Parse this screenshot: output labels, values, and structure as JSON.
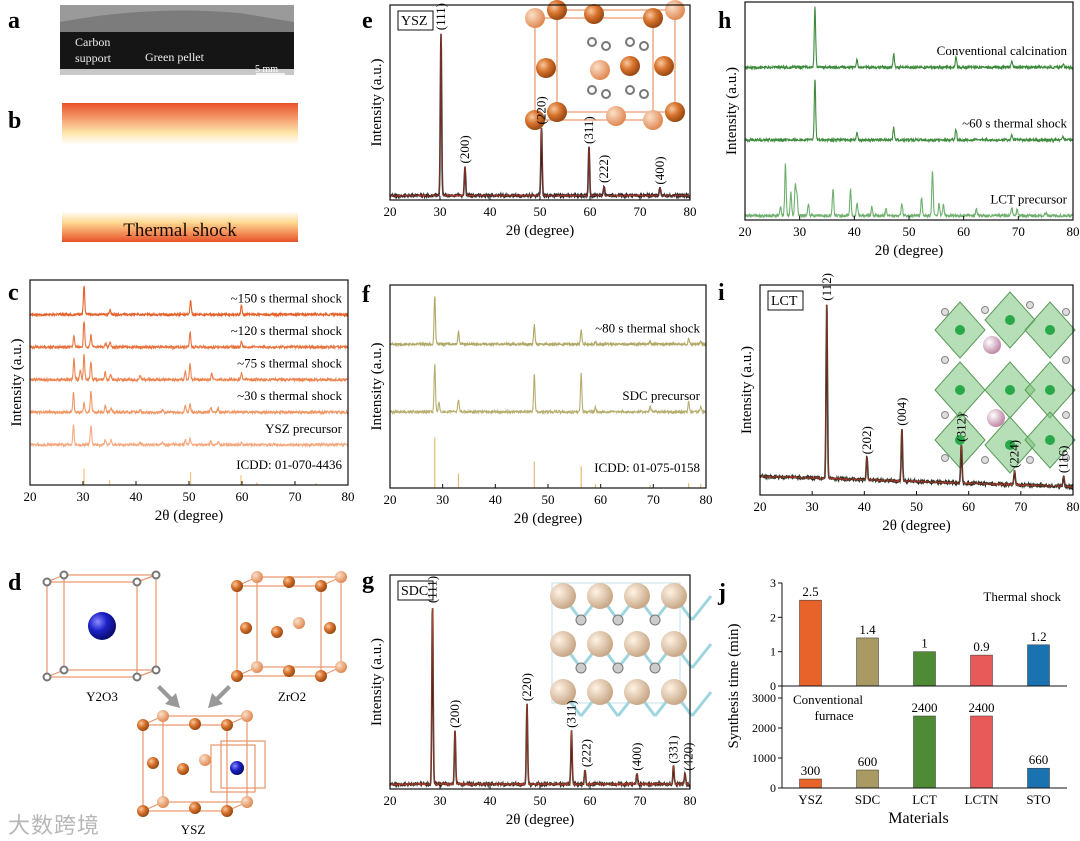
{
  "panel_labels": [
    "a",
    "b",
    "c",
    "d",
    "e",
    "f",
    "g",
    "h",
    "i",
    "j"
  ],
  "panel_a": {
    "left_label_1": "Carbon",
    "left_label_2": "support",
    "center_label": "Green pellet",
    "scale_bar": "5 mm"
  },
  "panel_b": {
    "caption": "Thermal shock"
  },
  "panel_d": {
    "left": "Y2O3",
    "right": "ZrO2",
    "product": "YSZ"
  },
  "watermark": "大数跨境",
  "chart_data": [
    {
      "id": "c",
      "type": "line",
      "xlabel": "2θ (degree)",
      "ylabel": "Intensity (a.u.)",
      "xlim": [
        20,
        80
      ],
      "ylim": [
        0,
        6.3
      ],
      "xticks": [
        20,
        30,
        40,
        50,
        60,
        70,
        80
      ],
      "tag": "",
      "series": [
        {
          "name": "~150 s thermal shock",
          "offset": 5.2,
          "color": "#e4612a",
          "peaks": [
            [
              30.2,
              0.9
            ],
            [
              35.1,
              0.15
            ],
            [
              50.3,
              0.45
            ],
            [
              59.9,
              0.28
            ]
          ]
        },
        {
          "name": "~120 s thermal shock",
          "offset": 4.2,
          "color": "#e8723e",
          "peaks": [
            [
              28.3,
              0.35
            ],
            [
              30.2,
              0.8
            ],
            [
              31.5,
              0.35
            ],
            [
              34.3,
              0.12
            ],
            [
              35.1,
              0.15
            ],
            [
              50.2,
              0.45
            ],
            [
              59.9,
              0.2
            ]
          ]
        },
        {
          "name": "~75 s thermal shock",
          "offset": 3.2,
          "color": "#ec8450",
          "peaks": [
            [
              28.3,
              0.65
            ],
            [
              29.5,
              0.3
            ],
            [
              30.2,
              0.75
            ],
            [
              31.5,
              0.55
            ],
            [
              34.2,
              0.25
            ],
            [
              35.2,
              0.2
            ],
            [
              40.8,
              0.1
            ],
            [
              49.3,
              0.25
            ],
            [
              50.2,
              0.5
            ],
            [
              54.3,
              0.2
            ],
            [
              59.9,
              0.2
            ]
          ]
        },
        {
          "name": "~30 s thermal shock",
          "offset": 2.2,
          "color": "#f09766",
          "peaks": [
            [
              28.2,
              0.6
            ],
            [
              30.2,
              0.3
            ],
            [
              31.5,
              0.65
            ],
            [
              34.2,
              0.2
            ],
            [
              35.3,
              0.15
            ],
            [
              40.8,
              0.1
            ],
            [
              45,
              0.08
            ],
            [
              49.3,
              0.2
            ],
            [
              50.2,
              0.25
            ],
            [
              54.1,
              0.15
            ],
            [
              55.5,
              0.12
            ]
          ]
        },
        {
          "name": "YSZ precursor",
          "offset": 1.2,
          "color": "#f4a980",
          "peaks": [
            [
              28.2,
              0.6
            ],
            [
              31.5,
              0.6
            ],
            [
              34.2,
              0.15
            ],
            [
              35.3,
              0.15
            ],
            [
              40.8,
              0.08
            ],
            [
              45,
              0.08
            ],
            [
              49.3,
              0.15
            ],
            [
              50.2,
              0.18
            ],
            [
              54.1,
              0.12
            ],
            [
              55.5,
              0.12
            ],
            [
              59.9,
              0.08
            ]
          ]
        },
        {
          "name": "ICDD: 01-070-4436",
          "offset": 0,
          "color": "#f5c27a",
          "sticks": true,
          "peaks": [
            [
              30.2,
              0.5
            ],
            [
              35.0,
              0.15
            ],
            [
              50.3,
              0.4
            ],
            [
              59.8,
              0.3
            ],
            [
              62.8,
              0.08
            ],
            [
              74,
              0.06
            ]
          ]
        }
      ]
    },
    {
      "id": "e",
      "type": "line",
      "xlabel": "2θ (degree)",
      "ylabel": "Intensity (a.u.)",
      "xlim": [
        20,
        80
      ],
      "ylim": [
        0,
        1.2
      ],
      "xticks": [
        20,
        30,
        40,
        50,
        60,
        70,
        80
      ],
      "tag": "YSZ",
      "series": [
        {
          "name": "YSZ",
          "offset": 0.02,
          "color": "#222",
          "peaks": [
            [
              30.2,
              1.0
            ],
            [
              35.0,
              0.18
            ],
            [
              50.3,
              0.42
            ],
            [
              59.8,
              0.3
            ],
            [
              62.8,
              0.06
            ],
            [
              74.0,
              0.05
            ]
          ]
        }
      ],
      "peak_labels": [
        {
          "text": "(111)",
          "x": 30.2
        },
        {
          "text": "(200)",
          "x": 35.0
        },
        {
          "text": "(220)",
          "x": 50.3
        },
        {
          "text": "(311)",
          "x": 59.8
        },
        {
          "text": "(222)",
          "x": 62.8
        },
        {
          "text": "(400)",
          "x": 74.0
        }
      ]
    },
    {
      "id": "f",
      "type": "line",
      "xlabel": "2θ (degree)",
      "ylabel": "Intensity (a.u.)",
      "xlim": [
        20,
        80
      ],
      "ylim": [
        0,
        4.2
      ],
      "xticks": [
        20,
        30,
        40,
        50,
        60,
        70,
        80
      ],
      "tag": "",
      "series": [
        {
          "name": "~80 s thermal shock",
          "offset": 2.95,
          "color": "#b1a866",
          "peaks": [
            [
              28.5,
              1.0
            ],
            [
              33.0,
              0.25
            ],
            [
              47.4,
              0.4
            ],
            [
              56.3,
              0.3
            ],
            [
              59.0,
              0.05
            ],
            [
              69.4,
              0.05
            ],
            [
              76.7,
              0.1
            ],
            [
              79.0,
              0.06
            ]
          ]
        },
        {
          "name": "SDC precursor",
          "offset": 1.55,
          "color": "#b7ae70",
          "peaks": [
            [
              28.5,
              1.0
            ],
            [
              29.3,
              0.2
            ],
            [
              33.0,
              0.25
            ],
            [
              47.4,
              0.8
            ],
            [
              56.3,
              0.8
            ],
            [
              59.0,
              0.1
            ],
            [
              69.4,
              0.1
            ],
            [
              76.7,
              0.2
            ],
            [
              79.0,
              0.1
            ]
          ]
        },
        {
          "name": "ICDD: 01-075-0158",
          "offset": 0,
          "color": "#e0c070",
          "sticks": true,
          "peaks": [
            [
              28.5,
              1.05
            ],
            [
              33.0,
              0.3
            ],
            [
              47.4,
              0.55
            ],
            [
              56.3,
              0.45
            ],
            [
              59,
              0.08
            ],
            [
              69.4,
              0.06
            ],
            [
              76.7,
              0.1
            ],
            [
              79,
              0.08
            ]
          ]
        }
      ]
    },
    {
      "id": "g",
      "type": "line",
      "xlabel": "2θ (degree)",
      "ylabel": "Intensity (a.u.)",
      "xlim": [
        20,
        80
      ],
      "ylim": [
        0,
        1.2
      ],
      "xticks": [
        20,
        30,
        40,
        50,
        60,
        70,
        80
      ],
      "tag": "SDC",
      "series": [
        {
          "name": "SDC",
          "offset": 0.02,
          "color": "#3a2e22",
          "peaks": [
            [
              28.5,
              1.0
            ],
            [
              33.0,
              0.3
            ],
            [
              47.4,
              0.45
            ],
            [
              56.3,
              0.3
            ],
            [
              59.0,
              0.08
            ],
            [
              69.4,
              0.06
            ],
            [
              76.7,
              0.1
            ],
            [
              79.0,
              0.06
            ]
          ]
        }
      ],
      "peak_labels": [
        {
          "text": "(111)",
          "x": 28.5
        },
        {
          "text": "(200)",
          "x": 33.0
        },
        {
          "text": "(220)",
          "x": 47.4
        },
        {
          "text": "(311)",
          "x": 56.3
        },
        {
          "text": "(222)",
          "x": 59.0
        },
        {
          "text": "(400)",
          "x": 69.4
        },
        {
          "text": "(331)",
          "x": 76.7
        },
        {
          "text": "(420)",
          "x": 79.0
        }
      ]
    },
    {
      "id": "h",
      "type": "line",
      "xlabel": "2θ (degree)",
      "ylabel": "Intensity (a.u.)",
      "xlim": [
        20,
        80
      ],
      "ylim": [
        0,
        3.6
      ],
      "xticks": [
        20,
        30,
        40,
        50,
        60,
        70,
        80
      ],
      "tag": "",
      "series": [
        {
          "name": "Conventional calcination",
          "offset": 2.5,
          "color": "#3c8a3c",
          "peaks": [
            [
              32.8,
              1.0
            ],
            [
              40.5,
              0.12
            ],
            [
              47.2,
              0.22
            ],
            [
              58.6,
              0.18
            ],
            [
              68.8,
              0.1
            ],
            [
              78.2,
              0.05
            ]
          ]
        },
        {
          "name": "~60 s thermal shock",
          "offset": 1.3,
          "color": "#3f8c3f",
          "peaks": [
            [
              32.8,
              1.0
            ],
            [
              40.5,
              0.12
            ],
            [
              47.2,
              0.22
            ],
            [
              58.6,
              0.18
            ],
            [
              68.8,
              0.08
            ],
            [
              78.2,
              0.05
            ]
          ]
        },
        {
          "name": "LCT precursor",
          "offset": 0.05,
          "color": "#6fb06f",
          "peaks": [
            [
              26.5,
              0.15
            ],
            [
              27.4,
              0.85
            ],
            [
              28.4,
              0.4
            ],
            [
              29.2,
              0.5
            ],
            [
              29.5,
              0.35
            ],
            [
              31.6,
              0.2
            ],
            [
              36.1,
              0.45
            ],
            [
              39.3,
              0.45
            ],
            [
              40.5,
              0.2
            ],
            [
              43.2,
              0.15
            ],
            [
              45.8,
              0.12
            ],
            [
              48.7,
              0.2
            ],
            [
              52.3,
              0.3
            ],
            [
              54.3,
              0.75
            ],
            [
              55.5,
              0.2
            ],
            [
              56.3,
              0.2
            ],
            [
              62.3,
              0.12
            ],
            [
              68.8,
              0.15
            ],
            [
              69.8,
              0.1
            ],
            [
              75,
              0.06
            ]
          ]
        }
      ]
    },
    {
      "id": "i",
      "type": "line",
      "xlabel": "2θ (degree)",
      "ylabel": "Intensity (a.u.)",
      "xlim": [
        20,
        80
      ],
      "ylim": [
        0,
        1.2
      ],
      "xticks": [
        20,
        30,
        40,
        50,
        60,
        70,
        80
      ],
      "tag": "LCT",
      "sloped": true,
      "series": [
        {
          "name": "LCT",
          "offset": 0.04,
          "color": "#1f2b1f",
          "peaks": [
            [
              32.8,
              1.0
            ],
            [
              40.5,
              0.13
            ],
            [
              47.2,
              0.3
            ],
            [
              58.6,
              0.22
            ],
            [
              68.8,
              0.08
            ],
            [
              78.2,
              0.06
            ]
          ]
        }
      ],
      "peak_labels": [
        {
          "text": "(112)",
          "x": 32.8
        },
        {
          "text": "(202)",
          "x": 40.5
        },
        {
          "text": "(004)",
          "x": 47.2
        },
        {
          "text": "(312)",
          "x": 58.6
        },
        {
          "text": "(224)",
          "x": 68.8
        },
        {
          "text": "(116)",
          "x": 78.2
        }
      ]
    },
    {
      "id": "j",
      "type": "bar",
      "xlabel": "Materials",
      "ylabel": "Synthesis time (min)",
      "categories": [
        "YSZ",
        "SDC",
        "LCT",
        "LCTN",
        "STO"
      ],
      "colors": [
        "#e8632a",
        "#a89a62",
        "#4f8a35",
        "#e85a5a",
        "#1a72b0"
      ],
      "series": [
        {
          "name": "Thermal shock",
          "values": [
            2.5,
            1.4,
            1,
            0.9,
            1.2
          ],
          "ylim": [
            0,
            3
          ],
          "yticks": [
            0,
            1,
            2,
            3
          ],
          "value_labels": [
            "2.5",
            "1.4",
            "1",
            "0.9",
            "1.2"
          ]
        },
        {
          "name": "Conventional furnace",
          "values": [
            300,
            600,
            2400,
            2400,
            660
          ],
          "ylim": [
            0,
            3400
          ],
          "yticks": [
            0,
            1000,
            2000,
            3000
          ],
          "value_labels": [
            "300",
            "600",
            "2400",
            "2400",
            "660"
          ]
        }
      ]
    }
  ]
}
